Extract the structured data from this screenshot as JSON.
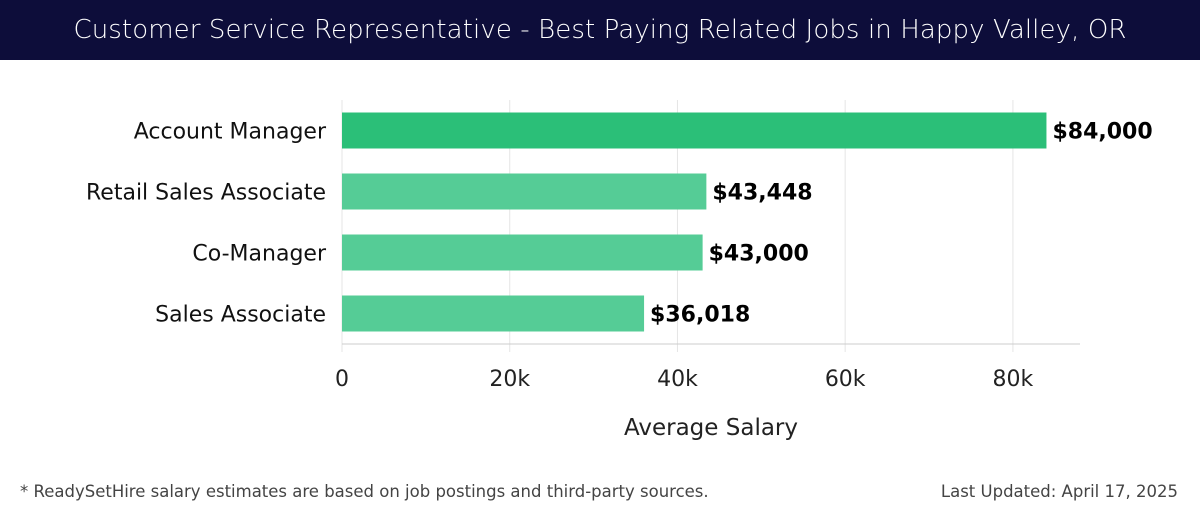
{
  "header": {
    "title": "Customer Service Representative - Best Paying Related Jobs in Happy Valley, OR"
  },
  "chart_data": {
    "type": "bar",
    "orientation": "horizontal",
    "title": "Customer Service Representative - Best Paying Related Jobs in Happy Valley, OR",
    "categories": [
      "Account Manager",
      "Retail Sales Associate",
      "Co-Manager",
      "Sales Associate"
    ],
    "values": [
      84000,
      43448,
      43000,
      36018
    ],
    "value_labels": [
      "$84,000",
      "$43,448",
      "$43,000",
      "$36,018"
    ],
    "xlabel": "Average Salary",
    "ylabel": "",
    "xlim": [
      0,
      88000
    ],
    "xticks": [
      0,
      20000,
      40000,
      60000,
      80000
    ],
    "xtick_labels": [
      "0",
      "20k",
      "40k",
      "60k",
      "80k"
    ],
    "grid": true,
    "colors": {
      "highlight": "#2bbf78",
      "bar": "#55cc96",
      "grid": "#e5e5e5",
      "axis": "#cccccc"
    }
  },
  "footer": {
    "note": "* ReadySetHire salary estimates are based on job postings and third-party sources.",
    "updated": "Last Updated: April 17, 2025"
  }
}
